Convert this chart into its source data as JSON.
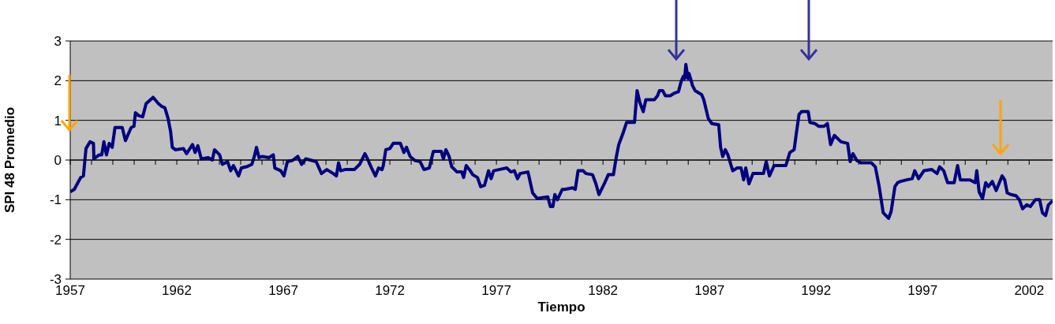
{
  "chart_data": {
    "type": "line",
    "xlabel": "Tiempo",
    "ylabel": "SPI 48 Promedio",
    "x": [
      1957.0,
      1957.19,
      1957.49,
      1957.62,
      1957.74,
      1957.93,
      1958.09,
      1958.11,
      1958.36,
      1958.48,
      1958.58,
      1958.7,
      1958.83,
      1958.97,
      1959.1,
      1959.44,
      1959.59,
      1959.86,
      1959.99,
      1960.06,
      1960.21,
      1960.4,
      1960.56,
      1960.89,
      1961.14,
      1961.3,
      1961.44,
      1961.59,
      1961.71,
      1961.79,
      1961.93,
      1962.31,
      1962.46,
      1962.74,
      1962.86,
      1962.99,
      1963.15,
      1963.48,
      1963.67,
      1963.77,
      1964.01,
      1964.14,
      1964.38,
      1964.53,
      1964.66,
      1964.9,
      1965.03,
      1965.27,
      1965.52,
      1965.64,
      1965.74,
      1965.86,
      1966.01,
      1966.32,
      1966.53,
      1966.6,
      1966.88,
      1967.03,
      1967.19,
      1967.43,
      1967.68,
      1967.86,
      1968.05,
      1968.54,
      1968.79,
      1969.04,
      1969.34,
      1969.49,
      1969.59,
      1969.69,
      1969.9,
      1970.33,
      1970.58,
      1970.83,
      1970.95,
      1971.14,
      1971.32,
      1971.47,
      1971.63,
      1971.69,
      1971.81,
      1972.0,
      1972.16,
      1972.49,
      1972.66,
      1972.78,
      1972.95,
      1973.17,
      1973.42,
      1973.6,
      1973.85,
      1974.04,
      1974.41,
      1974.51,
      1974.63,
      1974.78,
      1974.9,
      1975.15,
      1975.37,
      1975.46,
      1975.58,
      1975.77,
      1975.89,
      1976.11,
      1976.26,
      1976.44,
      1976.63,
      1976.75,
      1976.87,
      1977.12,
      1977.49,
      1977.68,
      1977.84,
      1977.99,
      1978.11,
      1978.48,
      1978.7,
      1978.91,
      1979.41,
      1979.53,
      1979.65,
      1979.74,
      1979.86,
      1980.09,
      1980.21,
      1980.58,
      1980.7,
      1980.83,
      1981.07,
      1981.2,
      1981.51,
      1981.67,
      1981.81,
      1982.06,
      1982.25,
      1982.49,
      1982.61,
      1982.74,
      1982.93,
      1983.11,
      1983.48,
      1983.6,
      1983.73,
      1983.89,
      1984.01,
      1984.41,
      1984.56,
      1984.65,
      1984.8,
      1984.93,
      1985.15,
      1985.33,
      1985.54,
      1985.67,
      1985.77,
      1985.83,
      1985.89,
      1985.99,
      1986.04,
      1986.2,
      1986.32,
      1986.63,
      1986.73,
      1986.94,
      1987.1,
      1987.43,
      1987.52,
      1987.62,
      1987.74,
      1987.86,
      1988.09,
      1988.3,
      1988.48,
      1988.6,
      1988.7,
      1988.85,
      1989.04,
      1989.53,
      1989.66,
      1989.81,
      1990.03,
      1990.58,
      1990.77,
      1990.97,
      1991.07,
      1991.2,
      1991.32,
      1991.63,
      1991.71,
      1991.94,
      1992.12,
      1992.37,
      1992.53,
      1992.68,
      1992.86,
      1993.17,
      1993.48,
      1993.6,
      1993.73,
      1993.91,
      1994.1,
      1994.59,
      1994.78,
      1994.96,
      1995.15,
      1995.4,
      1995.52,
      1995.7,
      1995.83,
      1995.96,
      1996.26,
      1996.51,
      1996.63,
      1996.81,
      1997.06,
      1997.43,
      1997.68,
      1997.8,
      1997.99,
      1998.17,
      1998.48,
      1998.64,
      1998.77,
      1998.97,
      1999.22,
      1999.47,
      1999.54,
      1999.65,
      1999.81,
      1999.96,
      2000.08,
      2000.27,
      2000.45,
      2000.6,
      2000.73,
      2000.85,
      2000.97,
      2001.14,
      2001.38,
      2001.54,
      2001.69,
      2001.88,
      2002.06,
      2002.29,
      2002.49,
      2002.62,
      2002.77,
      2002.9,
      2003.1
    ],
    "series": [
      {
        "color": "#000080",
        "values": [
          -0.8,
          -0.74,
          -0.44,
          -0.4,
          0.29,
          0.46,
          0.42,
          0.03,
          0.13,
          0.13,
          0.46,
          0.13,
          0.42,
          0.32,
          0.82,
          0.82,
          0.49,
          0.82,
          0.85,
          1.19,
          1.12,
          1.09,
          1.42,
          1.58,
          1.42,
          1.35,
          1.32,
          1.05,
          0.72,
          0.32,
          0.26,
          0.29,
          0.16,
          0.39,
          0.19,
          0.36,
          0.03,
          0.06,
          0.0,
          0.26,
          0.13,
          -0.11,
          -0.04,
          -0.27,
          -0.14,
          -0.4,
          -0.2,
          -0.17,
          -0.11,
          0.09,
          0.32,
          0.06,
          0.09,
          0.06,
          0.13,
          -0.2,
          -0.27,
          -0.4,
          -0.04,
          -0.01,
          0.09,
          -0.11,
          0.03,
          -0.04,
          -0.34,
          -0.24,
          -0.34,
          -0.4,
          -0.07,
          -0.27,
          -0.24,
          -0.24,
          -0.11,
          0.16,
          0.03,
          -0.2,
          -0.4,
          -0.2,
          -0.24,
          -0.14,
          0.26,
          0.29,
          0.42,
          0.42,
          0.19,
          0.32,
          0.09,
          -0.01,
          -0.04,
          -0.24,
          -0.2,
          0.22,
          0.22,
          0.03,
          0.26,
          0.09,
          -0.17,
          -0.3,
          -0.3,
          -0.44,
          -0.14,
          -0.27,
          -0.37,
          -0.44,
          -0.67,
          -0.64,
          -0.27,
          -0.47,
          -0.27,
          -0.24,
          -0.2,
          -0.3,
          -0.27,
          -0.47,
          -0.34,
          -0.3,
          -0.83,
          -0.97,
          -0.93,
          -1.17,
          -1.17,
          -0.87,
          -1.0,
          -0.74,
          -0.74,
          -0.7,
          -0.74,
          -0.27,
          -0.27,
          -0.34,
          -0.37,
          -0.6,
          -0.87,
          -0.6,
          -0.37,
          -0.37,
          0.03,
          0.39,
          0.66,
          0.95,
          0.95,
          1.75,
          1.45,
          1.22,
          1.52,
          1.52,
          1.62,
          1.75,
          1.75,
          1.62,
          1.62,
          1.68,
          1.72,
          1.98,
          2.11,
          2.05,
          2.41,
          2.05,
          2.18,
          1.88,
          1.75,
          1.65,
          1.52,
          1.05,
          0.92,
          0.89,
          0.32,
          0.09,
          0.26,
          0.13,
          -0.27,
          -0.2,
          -0.2,
          -0.5,
          -0.2,
          -0.6,
          -0.34,
          -0.34,
          -0.04,
          -0.4,
          -0.14,
          -0.14,
          0.19,
          0.26,
          0.66,
          1.15,
          1.22,
          1.22,
          0.95,
          0.92,
          0.85,
          0.85,
          0.92,
          0.39,
          0.62,
          0.46,
          0.42,
          -0.04,
          0.16,
          -0.01,
          -0.07,
          -0.07,
          -0.17,
          -0.67,
          -1.33,
          -1.47,
          -1.3,
          -0.67,
          -0.57,
          -0.54,
          -0.5,
          -0.47,
          -0.27,
          -0.47,
          -0.27,
          -0.24,
          -0.34,
          -0.17,
          -0.27,
          -0.57,
          -0.57,
          -0.14,
          -0.5,
          -0.5,
          -0.5,
          -0.57,
          -0.27,
          -0.8,
          -0.97,
          -0.57,
          -0.67,
          -0.54,
          -0.77,
          -0.57,
          -0.4,
          -0.5,
          -0.83,
          -0.87,
          -0.9,
          -1.0,
          -1.23,
          -1.13,
          -1.17,
          -1.0,
          -1.0,
          -1.33,
          -1.4,
          -1.13,
          -1.03
        ]
      }
    ],
    "xlim": [
      1957,
      2003.1
    ],
    "xticks": [
      1957,
      {
        "value": 1958,
        "label": null
      },
      {
        "value": 1959,
        "label": null
      },
      {
        "value": 1960,
        "label": null
      },
      {
        "value": 1961,
        "label": null
      },
      1962,
      {
        "value": 1963,
        "label": null
      },
      {
        "value": 1964,
        "label": null
      },
      {
        "value": 1965,
        "label": null
      },
      {
        "value": 1966,
        "label": null
      },
      1967,
      {
        "value": 1968,
        "label": null
      },
      {
        "value": 1969,
        "label": null
      },
      {
        "value": 1970,
        "label": null
      },
      {
        "value": 1971,
        "label": null
      },
      1972,
      {
        "value": 1973,
        "label": null
      },
      {
        "value": 1974,
        "label": null
      },
      {
        "value": 1975,
        "label": null
      },
      {
        "value": 1976,
        "label": null
      },
      1977,
      {
        "value": 1978,
        "label": null
      },
      {
        "value": 1979,
        "label": null
      },
      {
        "value": 1980,
        "label": null
      },
      {
        "value": 1981,
        "label": null
      },
      1982,
      {
        "value": 1983,
        "label": null
      },
      {
        "value": 1984,
        "label": null
      },
      {
        "value": 1985,
        "label": null
      },
      {
        "value": 1986,
        "label": null
      },
      1987,
      {
        "value": 1988,
        "label": null
      },
      {
        "value": 1989,
        "label": null
      },
      {
        "value": 1990,
        "label": null
      },
      {
        "value": 1991,
        "label": null
      },
      1992,
      {
        "value": 1993,
        "label": null
      },
      {
        "value": 1994,
        "label": null
      },
      {
        "value": 1995,
        "label": null
      },
      {
        "value": 1996,
        "label": null
      },
      1997,
      {
        "value": 1998,
        "label": null
      },
      {
        "value": 1999,
        "label": null
      },
      {
        "value": 2000,
        "label": null
      },
      {
        "value": 2001,
        "label": null
      },
      2002
    ],
    "ylim": [
      -3,
      3
    ],
    "yticks": [
      -3,
      -2,
      -1,
      0,
      1,
      2,
      3
    ],
    "grid": "y",
    "legend": false,
    "marker": "none",
    "line_style": "solid"
  }
}
